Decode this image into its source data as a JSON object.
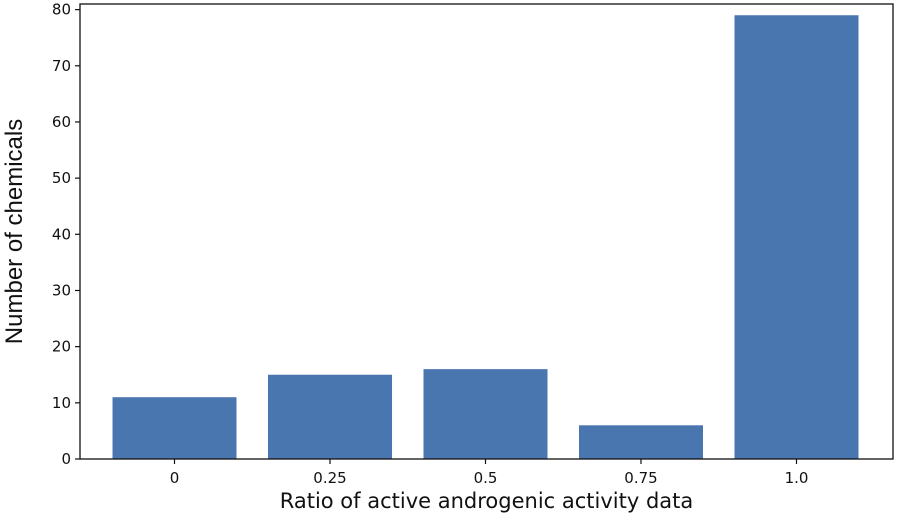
{
  "chart_data": {
    "type": "bar",
    "categories": [
      "0",
      "0.25",
      "0.5",
      "0.75",
      "1.0"
    ],
    "values": [
      11,
      15,
      16,
      6,
      79
    ],
    "title": "",
    "xlabel": "Ratio of active androgenic activity data",
    "ylabel": "Number of chemicals",
    "ylim": [
      0,
      81
    ],
    "yticks": [
      0,
      10,
      20,
      30,
      40,
      50,
      60,
      70,
      80
    ],
    "grid": false,
    "legend": "none",
    "bar_color": "#4a76b0"
  }
}
